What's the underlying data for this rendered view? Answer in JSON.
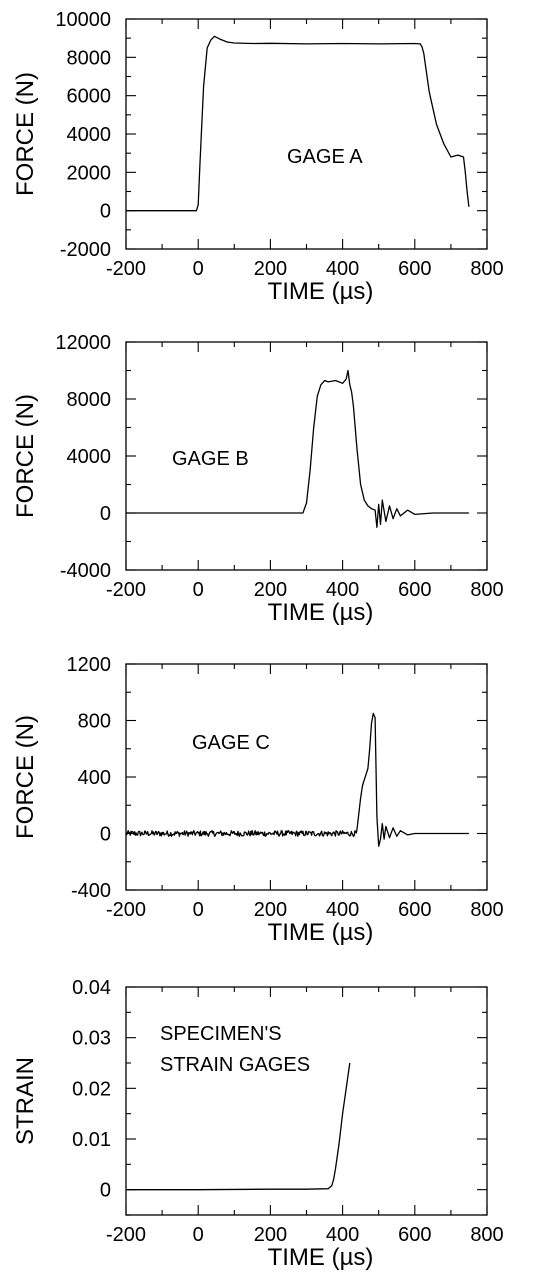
{
  "chart_data": [
    {
      "type": "line",
      "xlabel": "TIME (µs)",
      "ylabel": "FORCE (N)",
      "xlim": [
        -200,
        800
      ],
      "ylim": [
        -2000,
        10000
      ],
      "xticks": [
        "-200",
        "0",
        "200",
        "400",
        "600",
        "800"
      ],
      "yticks": [
        "-2000",
        "0",
        "2000",
        "4000",
        "6000",
        "8000",
        "10000"
      ],
      "annotation": "GAGE A",
      "grid": false,
      "series": [
        {
          "x": [
            -200,
            -5,
            0,
            5,
            15,
            25,
            35,
            45,
            60,
            80,
            100,
            150,
            200,
            300,
            400,
            500,
            600,
            615,
            620,
            625,
            640,
            660,
            680,
            700,
            720,
            735,
            740,
            745,
            750
          ],
          "y": [
            0,
            0,
            300,
            2500,
            6500,
            8500,
            8900,
            9100,
            8950,
            8800,
            8750,
            8720,
            8730,
            8700,
            8720,
            8700,
            8720,
            8700,
            8550,
            8200,
            6200,
            4500,
            3500,
            2800,
            2900,
            2800,
            2000,
            1000,
            200
          ]
        }
      ]
    },
    {
      "type": "line",
      "xlabel": "TIME (µs)",
      "ylabel": "FORCE (N)",
      "xlim": [
        -200,
        800
      ],
      "ylim": [
        -4000,
        12000
      ],
      "xticks": [
        "-200",
        "0",
        "200",
        "400",
        "600",
        "800"
      ],
      "yticks": [
        "-4000",
        "0",
        "4000",
        "8000",
        "12000"
      ],
      "annotation": "GAGE B",
      "grid": false,
      "series": [
        {
          "x": [
            -200,
            100,
            290,
            300,
            310,
            320,
            330,
            340,
            350,
            360,
            380,
            400,
            410,
            415,
            420,
            425,
            430,
            440,
            450,
            460,
            470,
            480,
            490,
            495,
            500,
            505,
            510,
            520,
            530,
            540,
            550,
            560,
            580,
            600,
            650,
            700,
            750
          ],
          "y": [
            0,
            0,
            0,
            700,
            3000,
            6000,
            8200,
            9000,
            9300,
            9200,
            9300,
            9100,
            9400,
            10000,
            9000,
            8500,
            7500,
            4500,
            2000,
            900,
            500,
            300,
            200,
            -1000,
            600,
            -800,
            900,
            -600,
            500,
            -400,
            300,
            -200,
            200,
            -100,
            0,
            0,
            0
          ]
        }
      ]
    },
    {
      "type": "line",
      "xlabel": "TIME (µs)",
      "ylabel": "FORCE (N)",
      "xlim": [
        -200,
        800
      ],
      "ylim": [
        -400,
        1200
      ],
      "xticks": [
        "-200",
        "0",
        "200",
        "400",
        "600",
        "800"
      ],
      "yticks": [
        "-400",
        "0",
        "400",
        "800",
        "1200"
      ],
      "annotation": "GAGE C",
      "grid": false,
      "series": [
        {
          "x": [
            -200,
            0,
            200,
            420,
            440,
            450,
            455,
            460,
            465,
            470,
            475,
            480,
            485,
            490,
            495,
            500,
            505,
            510,
            515,
            520,
            530,
            540,
            550,
            560,
            580,
            600,
            650,
            700,
            750
          ],
          "y": [
            0,
            0,
            0,
            0,
            30,
            250,
            340,
            380,
            420,
            460,
            600,
            780,
            850,
            820,
            120,
            -90,
            -40,
            70,
            -40,
            50,
            -30,
            40,
            -20,
            20,
            -10,
            0,
            0,
            0,
            0
          ]
        }
      ]
    },
    {
      "type": "line",
      "xlabel": "TIME (µs)",
      "ylabel": "STRAIN",
      "xlim": [
        -200,
        800
      ],
      "ylim": [
        -0.005,
        0.04
      ],
      "xticks": [
        "-200",
        "0",
        "200",
        "400",
        "600",
        "800"
      ],
      "yticks": [
        "0",
        "0.01",
        "0.02",
        "0.03",
        "0.04"
      ],
      "annotation": [
        "SPECIMEN'S",
        "STRAIN GAGES"
      ],
      "grid": false,
      "series": [
        {
          "x": [
            -200,
            0,
            200,
            300,
            360,
            370,
            375,
            380,
            390,
            400,
            410,
            420
          ],
          "y": [
            0,
            0,
            0.0001,
            0.0001,
            0.0002,
            0.0008,
            0.002,
            0.004,
            0.009,
            0.015,
            0.02,
            0.025
          ]
        }
      ]
    }
  ]
}
